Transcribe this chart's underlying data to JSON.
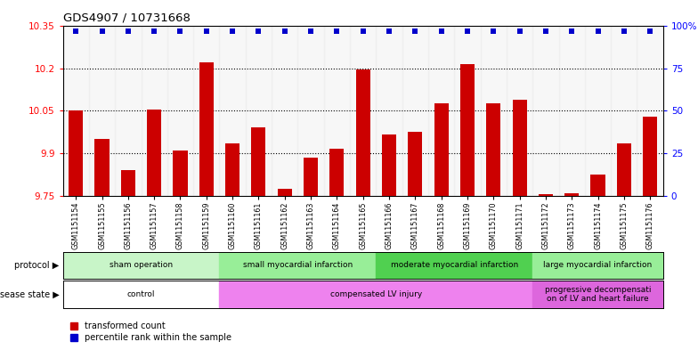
{
  "title": "GDS4907 / 10731668",
  "samples": [
    "GSM1151154",
    "GSM1151155",
    "GSM1151156",
    "GSM1151157",
    "GSM1151158",
    "GSM1151159",
    "GSM1151160",
    "GSM1151161",
    "GSM1151162",
    "GSM1151163",
    "GSM1151164",
    "GSM1151165",
    "GSM1151166",
    "GSM1151167",
    "GSM1151168",
    "GSM1151169",
    "GSM1151170",
    "GSM1151171",
    "GSM1151172",
    "GSM1151173",
    "GSM1151174",
    "GSM1151175",
    "GSM1151176"
  ],
  "bar_values": [
    10.05,
    9.95,
    9.84,
    10.055,
    9.91,
    10.22,
    9.935,
    9.99,
    9.775,
    9.885,
    9.915,
    10.195,
    9.965,
    9.975,
    10.075,
    10.215,
    10.075,
    10.09,
    9.756,
    9.757,
    9.825,
    9.935,
    10.03
  ],
  "percentile_values": [
    97,
    97,
    97,
    97,
    97,
    97,
    97,
    97,
    97,
    97,
    97,
    97,
    97,
    97,
    97,
    97,
    97,
    97,
    97,
    97,
    97,
    97,
    97
  ],
  "ylim_left": [
    9.75,
    10.35
  ],
  "ylim_right": [
    0,
    100
  ],
  "yticks_left": [
    9.75,
    9.9,
    10.05,
    10.2,
    10.35
  ],
  "ytick_labels_left": [
    "9.75",
    "9.9",
    "10.05",
    "10.2",
    "10.35"
  ],
  "yticks_right": [
    0,
    25,
    50,
    75,
    100
  ],
  "ytick_labels_right": [
    "0",
    "25",
    "50",
    "75",
    "100%"
  ],
  "bar_color": "#cc0000",
  "dot_color": "#0000cc",
  "protocol_bands": [
    {
      "label": "sham operation",
      "start": 0,
      "end": 5,
      "color": "#c8f5c8"
    },
    {
      "label": "small myocardial infarction",
      "start": 6,
      "end": 11,
      "color": "#98ee98"
    },
    {
      "label": "moderate myocardial infarction",
      "start": 12,
      "end": 17,
      "color": "#50d050"
    },
    {
      "label": "large myocardial infarction",
      "start": 18,
      "end": 22,
      "color": "#98ee98"
    }
  ],
  "disease_bands": [
    {
      "label": "control",
      "start": 0,
      "end": 5,
      "color": "#ffffff"
    },
    {
      "label": "compensated LV injury",
      "start": 6,
      "end": 17,
      "color": "#ee82ee"
    },
    {
      "label": "progressive decompensati\non of LV and heart failure",
      "start": 18,
      "end": 22,
      "color": "#dd66dd"
    }
  ],
  "legend_items": [
    {
      "label": "transformed count",
      "color": "#cc0000"
    },
    {
      "label": "percentile rank within the sample",
      "color": "#0000cc"
    }
  ]
}
